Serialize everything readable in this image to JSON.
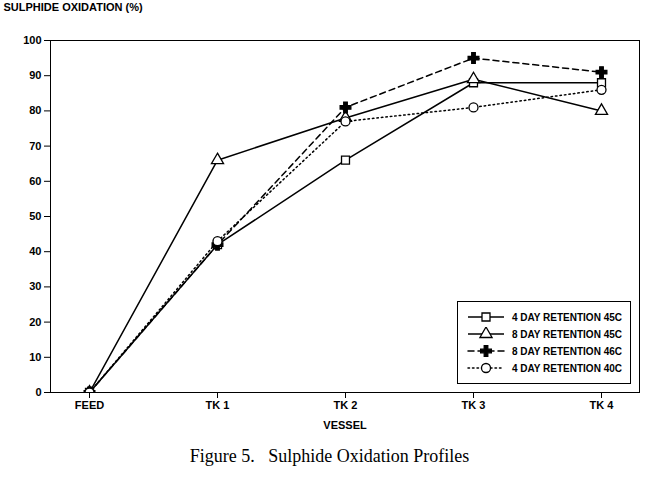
{
  "chart_data": {
    "type": "line",
    "title": "Figure 5.   Sulphide Oxidation Profiles",
    "xlabel": "VESSEL",
    "ylabel": "SULPHIDE OXIDATION (%)",
    "categories": [
      "FEED",
      "TK 1",
      "TK 2",
      "TK 3",
      "TK 4"
    ],
    "series": [
      {
        "name": "4 DAY RETENTION 45C",
        "color": "#000000",
        "marker": "square",
        "line_style": "solid",
        "values": [
          0,
          42,
          66,
          88,
          88
        ]
      },
      {
        "name": "8 DAY RETENTION 45C",
        "color": "#000000",
        "marker": "triangle",
        "line_style": "solid",
        "values": [
          0,
          66,
          78,
          89,
          80
        ]
      },
      {
        "name": "8 DAY RETENTION 46C",
        "color": "#000000",
        "marker": "plus",
        "line_style": "dashed",
        "values": [
          0,
          42,
          81,
          95,
          91
        ]
      },
      {
        "name": "4 DAY RETENTION 40C",
        "color": "#000000",
        "marker": "circle",
        "line_style": "dotted",
        "values": [
          0,
          43,
          77,
          81,
          86
        ]
      }
    ],
    "ylim": [
      0,
      100
    ],
    "yticks": [
      0,
      10,
      20,
      30,
      40,
      50,
      60,
      70,
      80,
      90,
      100
    ],
    "legend": "lower right"
  }
}
